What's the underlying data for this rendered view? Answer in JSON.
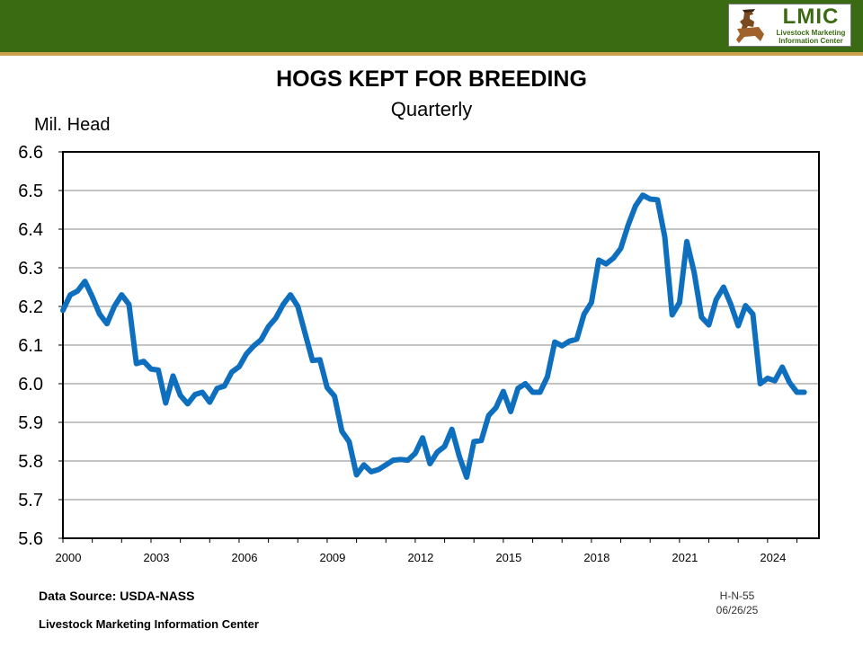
{
  "header": {
    "logo_title": "LMIC",
    "logo_line1": "Livestock Marketing",
    "logo_line2": "Information Center",
    "logo_icon": "cowboy-rider-icon"
  },
  "footer": {
    "source": "Data Source:  USDA-NASS",
    "org": "Livestock Marketing Information Center",
    "code": "H-N-55",
    "date": "06/26/25"
  },
  "colors": {
    "line": "#0f6fbf",
    "topbar": "#3a6b12"
  },
  "chart_data": {
    "type": "line",
    "title": "HOGS KEPT FOR BREEDING",
    "subtitle": "Quarterly",
    "ylabel": "Mil. Head",
    "xlabel": "",
    "ylim": [
      5.6,
      6.6
    ],
    "xlim": [
      2000,
      2025.75
    ],
    "yticks": [
      "6.6",
      "6.5",
      "6.4",
      "6.3",
      "6.2",
      "6.1",
      "6.0",
      "5.9",
      "5.8",
      "5.7",
      "5.6"
    ],
    "xticks": [
      "2000",
      "2003",
      "2006",
      "2009",
      "2012",
      "2015",
      "2018",
      "2021",
      "2024"
    ],
    "grid": true,
    "x_start": 2000,
    "x_step": 0.25,
    "values": [
      6.19,
      6.23,
      6.24,
      6.265,
      6.225,
      6.18,
      6.155,
      6.2,
      6.23,
      6.205,
      6.052,
      6.058,
      6.038,
      6.035,
      5.95,
      6.02,
      5.97,
      5.948,
      5.972,
      5.978,
      5.952,
      5.988,
      5.994,
      6.03,
      6.044,
      6.077,
      6.098,
      6.114,
      6.148,
      6.17,
      6.205,
      6.23,
      6.2,
      6.13,
      6.06,
      6.062,
      5.99,
      5.968,
      5.877,
      5.85,
      5.764,
      5.79,
      5.772,
      5.778,
      5.79,
      5.802,
      5.804,
      5.802,
      5.82,
      5.86,
      5.793,
      5.823,
      5.838,
      5.882,
      5.812,
      5.758,
      5.85,
      5.853,
      5.918,
      5.938,
      5.98,
      5.928,
      5.988,
      6.0,
      5.978,
      5.978,
      6.018,
      6.108,
      6.098,
      6.11,
      6.115,
      6.18,
      6.21,
      6.32,
      6.31,
      6.325,
      6.35,
      6.41,
      6.46,
      6.488,
      6.478,
      6.476,
      6.38,
      6.178,
      6.21,
      6.368,
      6.288,
      6.172,
      6.152,
      6.218,
      6.25,
      6.205,
      6.15,
      6.202,
      6.18,
      6.0,
      6.014,
      6.008,
      6.043,
      6.003,
      5.978,
      5.978
    ]
  }
}
